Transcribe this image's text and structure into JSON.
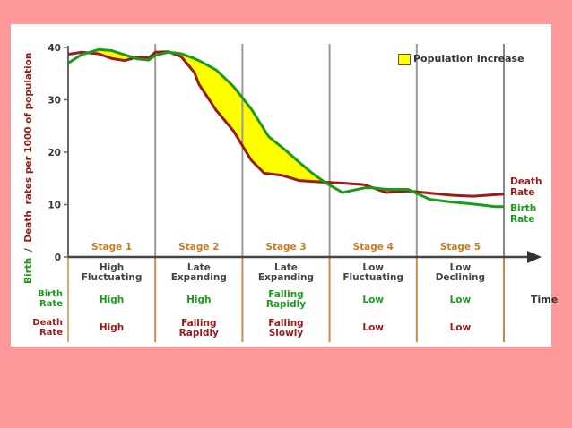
{
  "chart_data": {
    "type": "line",
    "ylabel_part1": "Birth",
    "ylabel_part2": "/",
    "ylabel_part3": "Death",
    "ylabel_part4": "rates per 1000 of population",
    "xlabel": "Time",
    "ylim": [
      0,
      40
    ],
    "yticks": [
      "0",
      "10",
      "20",
      "30",
      "40"
    ],
    "legend": "Population Increase",
    "series": [
      {
        "name": "Death Rate",
        "color": "#9b1b1b",
        "x": [
          0,
          0.3,
          0.7,
          1.0,
          1.3,
          1.6,
          1.85,
          2.0,
          2.3,
          2.6,
          2.9,
          3.0,
          3.4,
          3.8,
          4.2,
          4.5,
          4.9,
          5.3,
          5.8,
          6.3,
          6.8,
          7.3,
          7.8,
          8.3,
          8.8,
          9.3,
          9.8,
          10.0
        ],
        "y": [
          38.7,
          39.1,
          38.8,
          37.9,
          37.5,
          38.2,
          38.0,
          39.1,
          39.2,
          38.2,
          35.2,
          33.0,
          28.0,
          24.0,
          18.5,
          16.0,
          15.6,
          14.6,
          14.3,
          14.1,
          13.8,
          12.3,
          12.6,
          12.2,
          11.8,
          11.6,
          11.9,
          12.0
        ]
      },
      {
        "name": "Birth Rate",
        "color": "#1a9c1a",
        "x": [
          0,
          0.3,
          0.7,
          1.0,
          1.3,
          1.6,
          1.85,
          2.0,
          2.3,
          2.6,
          2.9,
          3.0,
          3.4,
          3.8,
          4.2,
          4.6,
          5.0,
          5.3,
          5.6,
          5.9,
          6.3,
          6.8,
          7.0,
          7.3,
          7.8,
          8.3,
          8.8,
          9.3,
          9.8,
          10.0
        ],
        "y": [
          37.0,
          38.6,
          39.6,
          39.4,
          38.6,
          37.8,
          37.6,
          38.5,
          39.1,
          38.8,
          37.9,
          37.5,
          35.7,
          32.5,
          28.3,
          23.0,
          20.3,
          18.1,
          16.0,
          14.2,
          12.3,
          13.2,
          13.2,
          12.9,
          12.9,
          11.0,
          10.5,
          10.1,
          9.6,
          9.6
        ]
      }
    ],
    "stage_dividers_x": [
      0,
      2,
      4,
      6,
      8,
      10
    ],
    "stages": [
      {
        "label": "Stage 1",
        "desc1": "High",
        "desc2": "Fluctuating",
        "birth1": "High",
        "birth2": "",
        "death1": "High",
        "death2": ""
      },
      {
        "label": "Stage 2",
        "desc1": "Late",
        "desc2": "Expanding",
        "birth1": "High",
        "birth2": "",
        "death1": "Falling",
        "death2": "Rapidly"
      },
      {
        "label": "Stage 3",
        "desc1": "Late",
        "desc2": "Expanding",
        "birth1": "Falling",
        "birth2": "Rapidly",
        "death1": "Falling",
        "death2": "Slowly"
      },
      {
        "label": "Stage 4",
        "desc1": "Low",
        "desc2": "Fluctuating",
        "birth1": "Low",
        "birth2": "",
        "death1": "Low",
        "death2": ""
      },
      {
        "label": "Stage 5",
        "desc1": "Low",
        "desc2": "Declining",
        "birth1": "Low",
        "birth2": "",
        "death1": "Low",
        "death2": ""
      }
    ],
    "row_labels": {
      "birth1": "Birth",
      "birth2": "Rate",
      "death1": "Death",
      "death2": "Rate"
    },
    "line_labels": {
      "death1": "Death",
      "death2": "Rate",
      "birth1": "Birth",
      "birth2": "Rate"
    }
  }
}
